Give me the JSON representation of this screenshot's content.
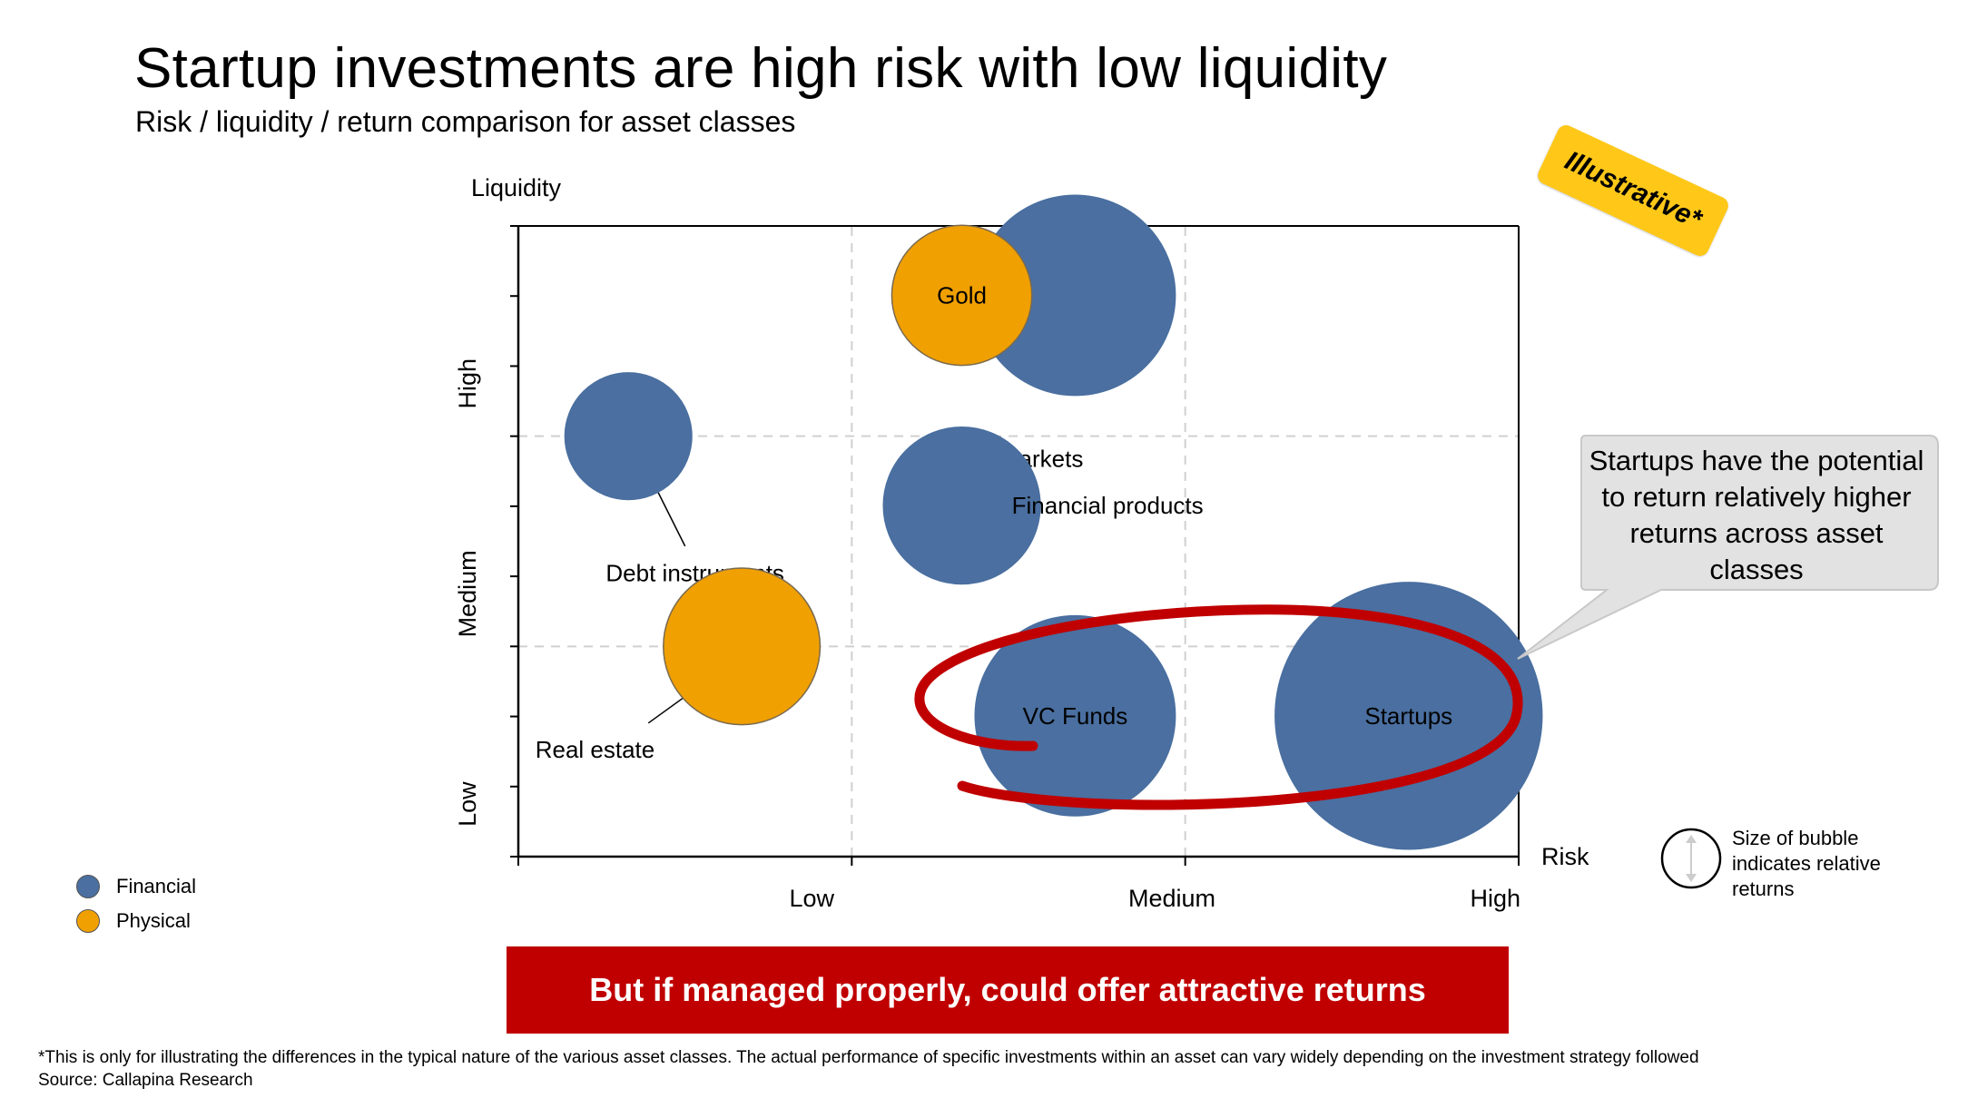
{
  "title": "Startup investments are high risk with low liquidity",
  "subtitle": "Risk / liquidity / return comparison for asset classes",
  "badge": "Illustrative*",
  "callout": "Startups have the potential to return relatively higher returns across asset classes",
  "banner": "But if managed properly, could offer attractive returns",
  "footnote": "*This is only for illustrating the differences in the typical nature of the various asset classes. The actual performance of specific investments within an asset can vary widely depending on the investment strategy followed",
  "source": "Source: Callapina Research",
  "size_note": "Size of bubble indicates relative returns",
  "legend": [
    {
      "label": "Financial",
      "color": "#4a6fa0"
    },
    {
      "label": "Physical",
      "color": "#f0a000"
    }
  ],
  "colors": {
    "financial": "#4a6fa0",
    "physical": "#f0a000",
    "highlight": "#c00000"
  },
  "chart_data": {
    "type": "scatter",
    "variant": "bubble",
    "xlabel": "Risk",
    "ylabel": "Liquidity",
    "x_ticks": [
      "Low",
      "Medium",
      "High"
    ],
    "y_ticks": [
      "Low",
      "Medium",
      "High"
    ],
    "xlim": [
      0,
      3
    ],
    "ylim": [
      0,
      3
    ],
    "grid": true,
    "series": [
      {
        "name": "Financial",
        "color": "#4a6fa0",
        "points": [
          {
            "label": "Stock markets",
            "x": 1.67,
            "y": 2.67,
            "size": 0.6
          },
          {
            "label": "Debt instruments",
            "x": 0.33,
            "y": 2.0,
            "size": 0.38
          },
          {
            "label": "Financial products",
            "x": 1.33,
            "y": 1.67,
            "size": 0.47
          },
          {
            "label": "VC Funds",
            "x": 1.67,
            "y": 0.67,
            "size": 0.6
          },
          {
            "label": "Startups",
            "x": 2.67,
            "y": 0.67,
            "size": 0.8
          }
        ]
      },
      {
        "name": "Physical",
        "color": "#f0a000",
        "points": [
          {
            "label": "Gold",
            "x": 1.33,
            "y": 2.67,
            "size": 0.42
          },
          {
            "label": "Real estate",
            "x": 0.67,
            "y": 1.0,
            "size": 0.47
          }
        ]
      }
    ]
  }
}
